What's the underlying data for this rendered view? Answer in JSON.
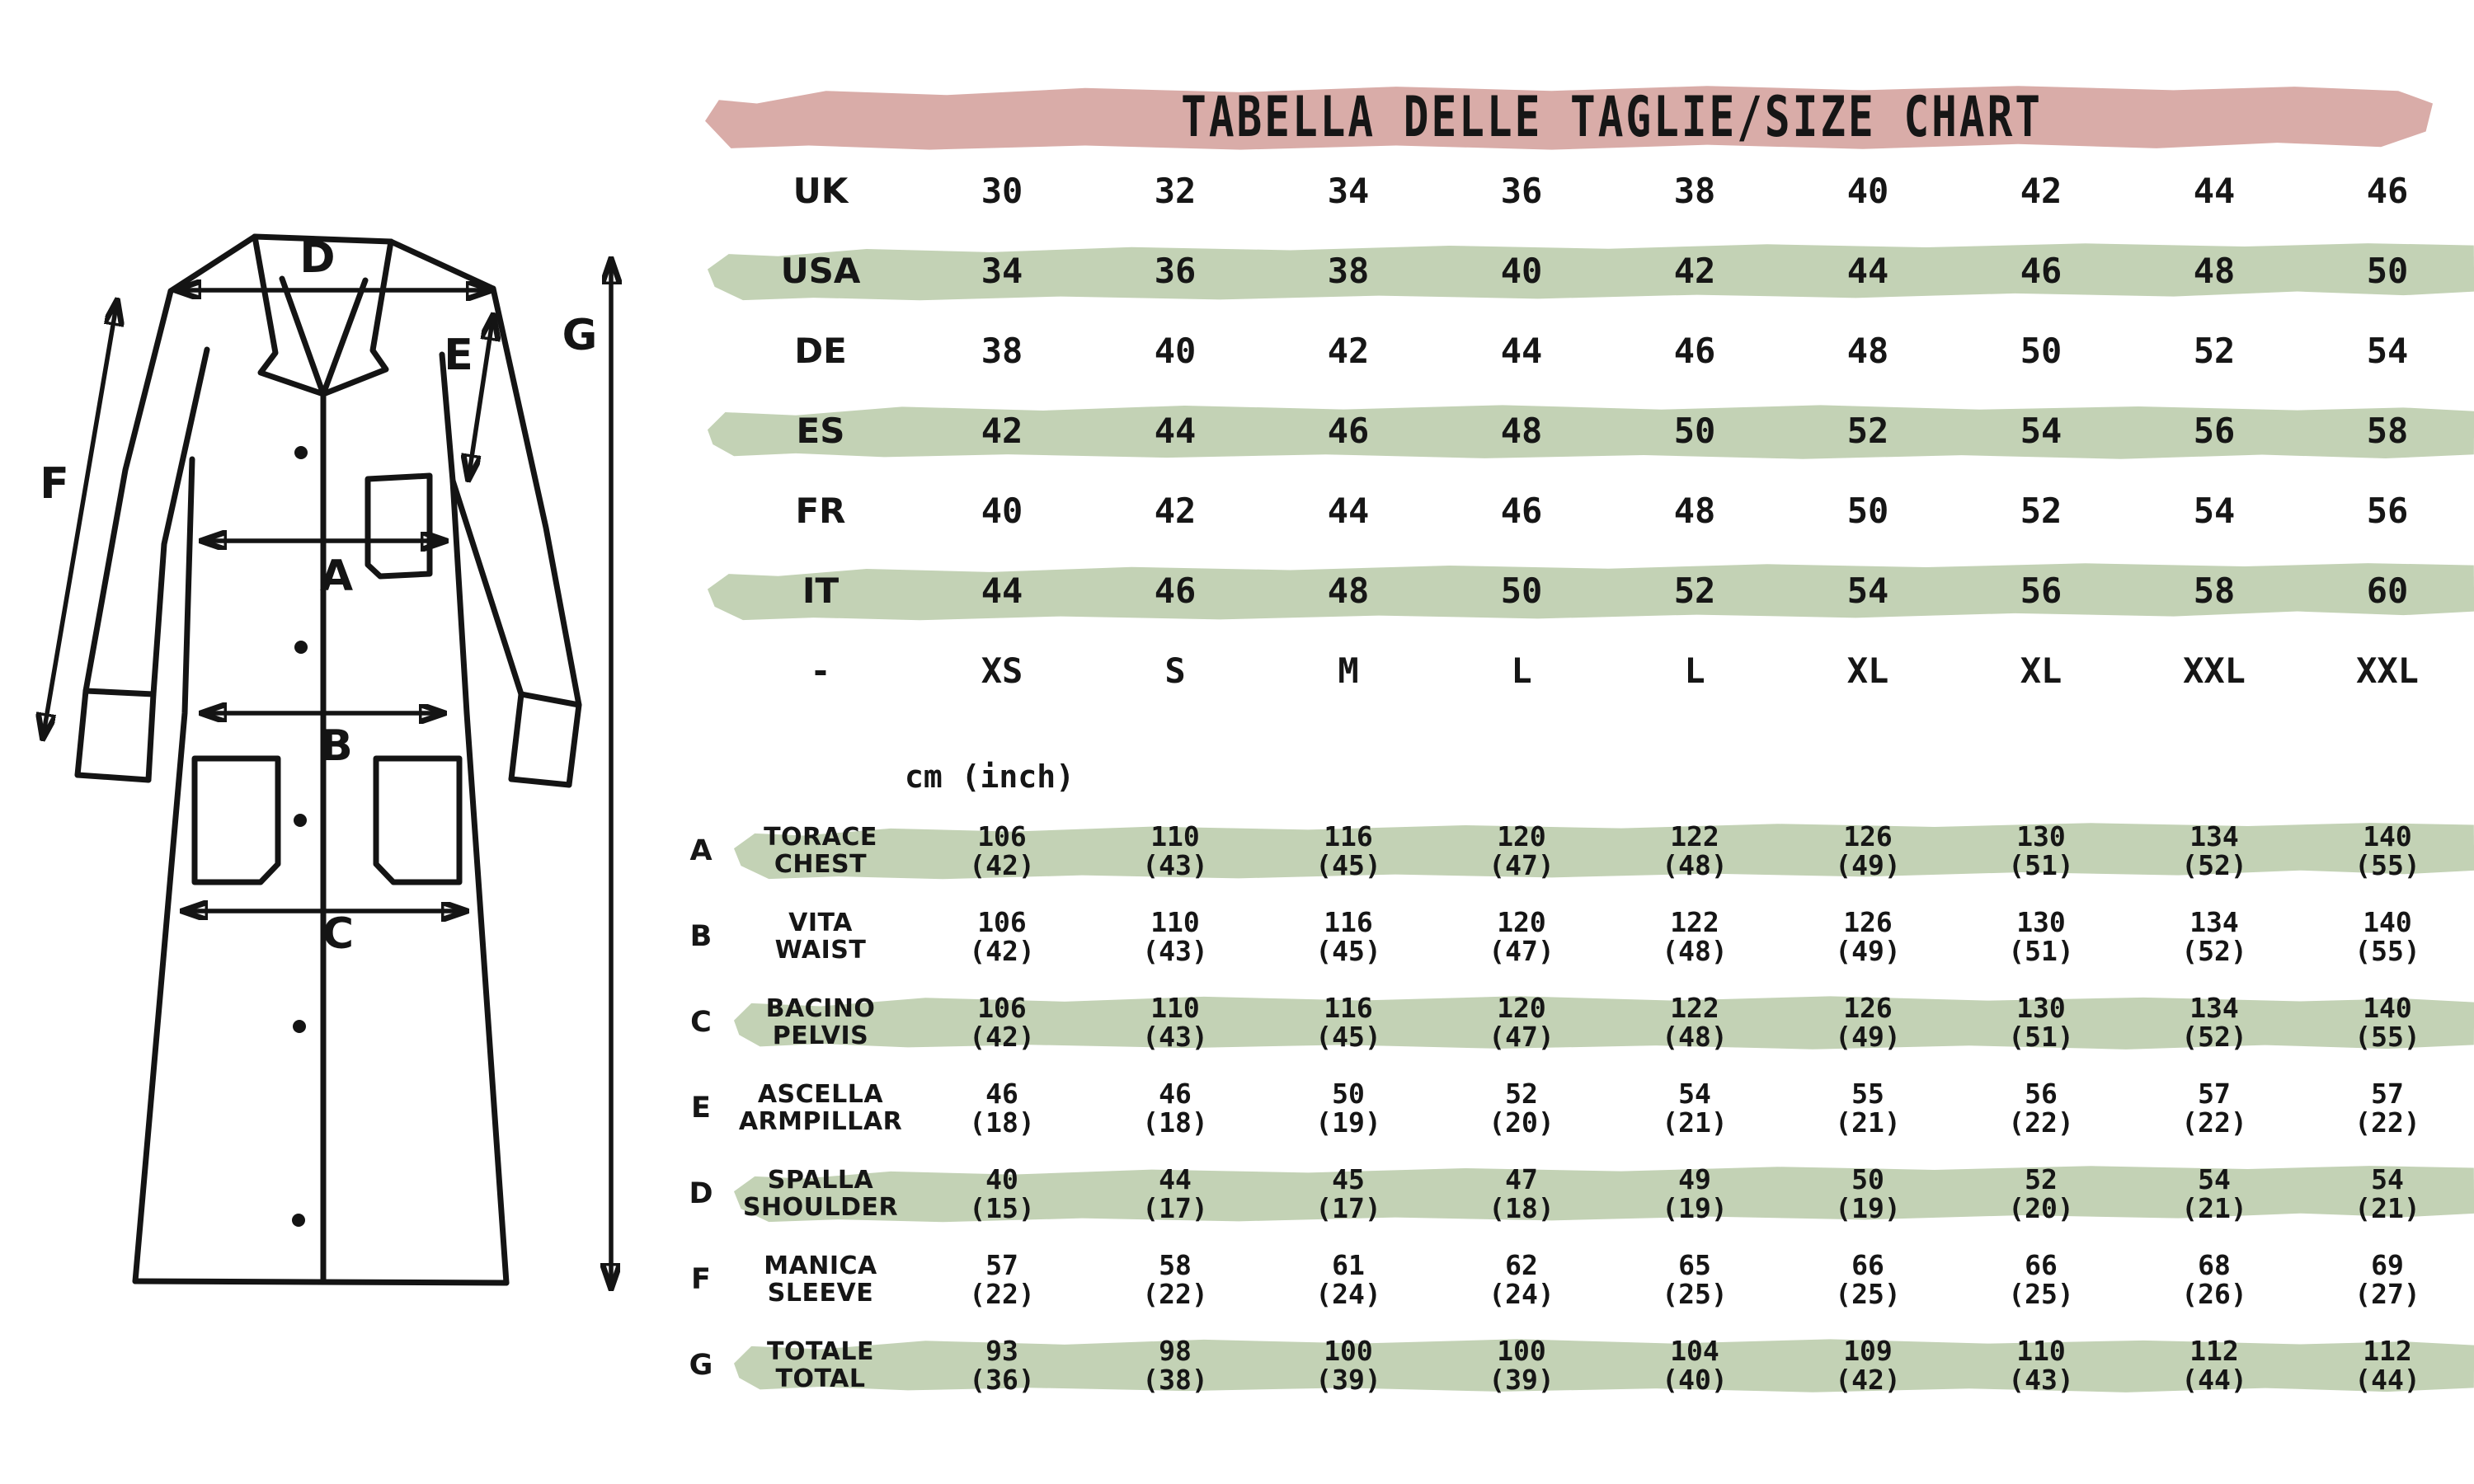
{
  "title_banner": {
    "text": "TABELLA DELLE TAGLIE/SIZE CHART"
  },
  "unit_note": "cm (inch)",
  "colors": {
    "banner_pink": "#d9aca8",
    "stripe_green": "#c3d2b5",
    "ink": "#161616"
  },
  "size_table": {
    "rows": [
      {
        "label": "UK",
        "striped": false,
        "values": [
          "30",
          "32",
          "34",
          "36",
          "38",
          "40",
          "42",
          "44",
          "46"
        ]
      },
      {
        "label": "USA",
        "striped": true,
        "values": [
          "34",
          "36",
          "38",
          "40",
          "42",
          "44",
          "46",
          "48",
          "50"
        ]
      },
      {
        "label": "DE",
        "striped": false,
        "values": [
          "38",
          "40",
          "42",
          "44",
          "46",
          "48",
          "50",
          "52",
          "54"
        ]
      },
      {
        "label": "ES",
        "striped": true,
        "values": [
          "42",
          "44",
          "46",
          "48",
          "50",
          "52",
          "54",
          "56",
          "58"
        ]
      },
      {
        "label": "FR",
        "striped": false,
        "values": [
          "40",
          "42",
          "44",
          "46",
          "48",
          "50",
          "52",
          "54",
          "56"
        ]
      },
      {
        "label": "IT",
        "striped": true,
        "values": [
          "44",
          "46",
          "48",
          "50",
          "52",
          "54",
          "56",
          "58",
          "60"
        ]
      },
      {
        "label": "-",
        "striped": false,
        "values": [
          "XS",
          "S",
          "M",
          "L",
          "L",
          "XL",
          "XL",
          "XXL",
          "XXL"
        ]
      }
    ]
  },
  "measurement_table": {
    "rows": [
      {
        "letter": "A",
        "label_it": "TORACE",
        "label_en": "CHEST",
        "striped": true,
        "cm": [
          "106",
          "110",
          "116",
          "120",
          "122",
          "126",
          "130",
          "134",
          "140"
        ],
        "inch": [
          "(42)",
          "(43)",
          "(45)",
          "(47)",
          "(48)",
          "(49)",
          "(51)",
          "(52)",
          "(55)"
        ]
      },
      {
        "letter": "B",
        "label_it": "VITA",
        "label_en": "WAIST",
        "striped": false,
        "cm": [
          "106",
          "110",
          "116",
          "120",
          "122",
          "126",
          "130",
          "134",
          "140"
        ],
        "inch": [
          "(42)",
          "(43)",
          "(45)",
          "(47)",
          "(48)",
          "(49)",
          "(51)",
          "(52)",
          "(55)"
        ]
      },
      {
        "letter": "C",
        "label_it": "BACINO",
        "label_en": "PELVIS",
        "striped": true,
        "cm": [
          "106",
          "110",
          "116",
          "120",
          "122",
          "126",
          "130",
          "134",
          "140"
        ],
        "inch": [
          "(42)",
          "(43)",
          "(45)",
          "(47)",
          "(48)",
          "(49)",
          "(51)",
          "(52)",
          "(55)"
        ]
      },
      {
        "letter": "E",
        "label_it": "ASCELLA",
        "label_en": "ARMPILLAR",
        "striped": false,
        "cm": [
          "46",
          "46",
          "50",
          "52",
          "54",
          "55",
          "56",
          "57",
          "57"
        ],
        "inch": [
          "(18)",
          "(18)",
          "(19)",
          "(20)",
          "(21)",
          "(21)",
          "(22)",
          "(22)",
          "(22)"
        ]
      },
      {
        "letter": "D",
        "label_it": "SPALLA",
        "label_en": "SHOULDER",
        "striped": true,
        "cm": [
          "40",
          "44",
          "45",
          "47",
          "49",
          "50",
          "52",
          "54",
          "54"
        ],
        "inch": [
          "(15)",
          "(17)",
          "(17)",
          "(18)",
          "(19)",
          "(19)",
          "(20)",
          "(21)",
          "(21)"
        ]
      },
      {
        "letter": "F",
        "label_it": "MANICA",
        "label_en": "SLEEVE",
        "striped": false,
        "cm": [
          "57",
          "58",
          "61",
          "62",
          "65",
          "66",
          "66",
          "68",
          "69"
        ],
        "inch": [
          "(22)",
          "(22)",
          "(24)",
          "(24)",
          "(25)",
          "(25)",
          "(25)",
          "(26)",
          "(27)"
        ]
      },
      {
        "letter": "G",
        "label_it": "TOTALE",
        "label_en": "TOTAL",
        "striped": true,
        "cm": [
          "93",
          "98",
          "100",
          "100",
          "104",
          "109",
          "110",
          "112",
          "112"
        ],
        "inch": [
          "(36)",
          "(38)",
          "(39)",
          "(39)",
          "(40)",
          "(42)",
          "(43)",
          "(44)",
          "(44)"
        ]
      }
    ]
  },
  "diagram": {
    "labels": {
      "A": "A",
      "B": "B",
      "C": "C",
      "D": "D",
      "E": "E",
      "F": "F",
      "G": "G"
    }
  }
}
